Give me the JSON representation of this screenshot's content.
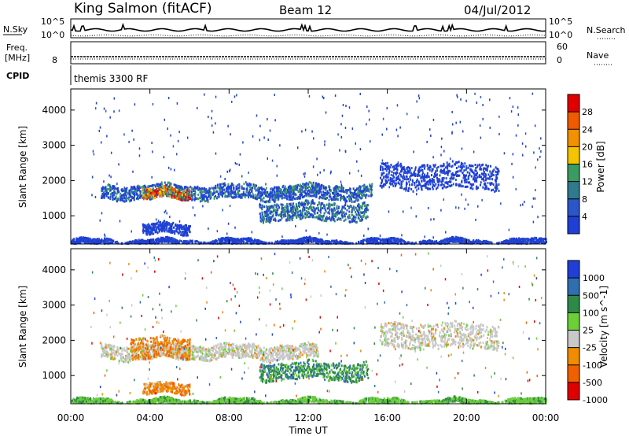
{
  "header": {
    "station": "King Salmon (fitACF)",
    "beam": "Beam 12",
    "date": "04/Jul/2012"
  },
  "noise_panel": {
    "left_label": "N.Sky",
    "left_top_tick": "10^5",
    "left_bottom_tick": "10^0",
    "right_top_tick": "10^5",
    "right_bottom_tick": "10^0",
    "right_label": "N.Search"
  },
  "freq_panel": {
    "left_label_1": "Freq.",
    "left_label_2": "[MHz]",
    "left_tick_8": "8",
    "right_top_tick": "60",
    "right_bottom_tick": "0",
    "right_label": "Nave"
  },
  "cpid_panel": {
    "label": "CPID",
    "text": "themis 3300 RF"
  },
  "xaxis": {
    "label": "Time UT",
    "ticks": [
      "00:00",
      "04:00",
      "08:00",
      "12:00",
      "16:00",
      "20:00",
      "00:00"
    ]
  },
  "chart_data": [
    {
      "type": "heatmap",
      "name": "power",
      "ylabel": "Slant Range [km]",
      "yticks": [
        "1000",
        "2000",
        "3000",
        "4000"
      ],
      "ylim": [
        200,
        4600
      ],
      "xlim_hours": [
        0,
        24
      ],
      "colorbar_label": "Power [dB]",
      "colorbar_ticks": [
        "4",
        "8",
        "12",
        "16",
        "20",
        "24",
        "28"
      ],
      "colors": [
        "#1f3fd6",
        "#2a56c8",
        "#2f7a8c",
        "#3b9b62",
        "#f5c400",
        "#f39000",
        "#f05a00",
        "#e00000"
      ],
      "bands": [
        {
          "t0": 1.5,
          "t1": 15.2,
          "r0": 1500,
          "r1": 1900,
          "level": "weak-moderate"
        },
        {
          "t0": 3.6,
          "t1": 6.0,
          "r0": 1500,
          "r1": 1800,
          "level": "strong"
        },
        {
          "t0": 9.5,
          "t1": 15.0,
          "r0": 900,
          "r1": 1400,
          "level": "moderate"
        },
        {
          "t0": 15.6,
          "t1": 21.6,
          "r0": 1800,
          "r1": 2500,
          "level": "weak"
        },
        {
          "t0": 3.6,
          "t1": 6.0,
          "r0": 500,
          "r1": 800,
          "level": "weak"
        },
        {
          "t0": 0.0,
          "t1": 24.0,
          "r0": 200,
          "r1": 350,
          "level": "weak"
        }
      ]
    },
    {
      "type": "heatmap",
      "name": "velocity",
      "ylabel": "Slant Range [km]",
      "yticks": [
        "1000",
        "2000",
        "3000",
        "4000"
      ],
      "ylim": [
        200,
        4600
      ],
      "xlim_hours": [
        0,
        24
      ],
      "colorbar_label": "Velocity [m s^-1]",
      "colorbar_ticks": [
        "1000",
        "500",
        "100",
        "25",
        "-25",
        "-100",
        "-500",
        "-1000"
      ],
      "colors": [
        "#1f3fd6",
        "#2f6fb0",
        "#2f8a4a",
        "#6ccf3a",
        "#c8c8c8",
        "#f08c00",
        "#f06000",
        "#e00000"
      ],
      "bands": [
        {
          "t0": 1.5,
          "t1": 12.5,
          "r0": 1500,
          "r1": 1900,
          "level": "ground-scatter"
        },
        {
          "t0": 3.0,
          "t1": 6.0,
          "r0": 1500,
          "r1": 2100,
          "level": "receding"
        },
        {
          "t0": 9.5,
          "t1": 15.0,
          "r0": 900,
          "r1": 1400,
          "level": "approaching"
        },
        {
          "t0": 15.6,
          "t1": 21.6,
          "r0": 1800,
          "r1": 2500,
          "level": "ground-scatter"
        },
        {
          "t0": 3.6,
          "t1": 6.0,
          "r0": 500,
          "r1": 800,
          "level": "receding"
        },
        {
          "t0": 0.0,
          "t1": 24.0,
          "r0": 200,
          "r1": 350,
          "level": "approaching-weak"
        }
      ]
    }
  ]
}
